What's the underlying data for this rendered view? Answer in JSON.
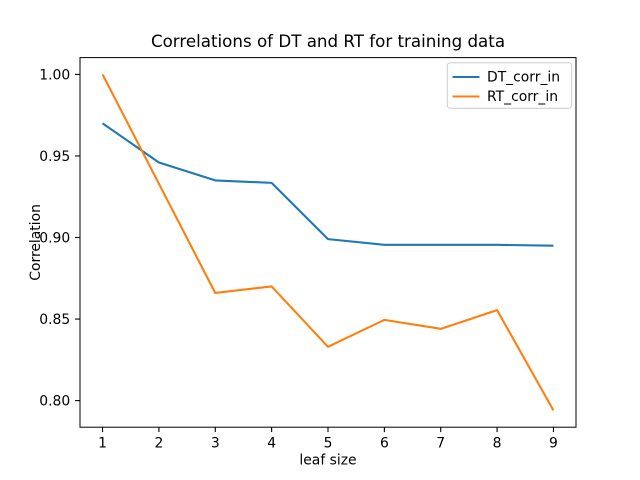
{
  "chart_data": {
    "type": "line",
    "title": "Correlations of DT and RT for training data",
    "xlabel": "leaf size",
    "ylabel": "Correlation",
    "x": [
      1,
      2,
      3,
      4,
      5,
      6,
      7,
      8,
      9
    ],
    "series": [
      {
        "name": "DT_corr_in",
        "color": "#1f77b4",
        "values": [
          0.97,
          0.946,
          0.935,
          0.9335,
          0.899,
          0.8955,
          0.8955,
          0.8955,
          0.895
        ]
      },
      {
        "name": "RT_corr_in",
        "color": "#ff7f0e",
        "values": [
          1.0,
          0.933,
          0.866,
          0.87,
          0.833,
          0.8495,
          0.844,
          0.8555,
          0.794
        ]
      }
    ],
    "xlim": [
      0.6,
      9.4
    ],
    "ylim": [
      0.7837,
      1.0103
    ],
    "xticks": [
      1,
      2,
      3,
      4,
      5,
      6,
      7,
      8,
      9
    ],
    "xtick_labels": [
      "1",
      "2",
      "3",
      "4",
      "5",
      "6",
      "7",
      "8",
      "9"
    ],
    "yticks": [
      0.8,
      0.85,
      0.9,
      0.95,
      1.0
    ],
    "ytick_labels": [
      "0.80",
      "0.85",
      "0.90",
      "0.95",
      "1.00"
    ],
    "grid": false,
    "legend": {
      "position": "upper right",
      "entries": [
        "DT_corr_in",
        "RT_corr_in"
      ]
    }
  }
}
